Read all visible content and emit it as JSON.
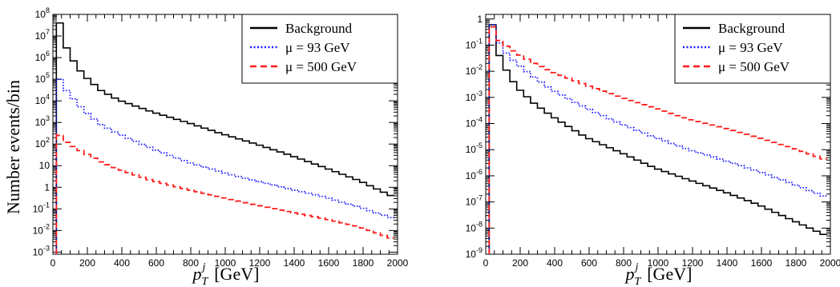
{
  "figure": {
    "ylabel": "Number events/bin",
    "xlabel_main": "p",
    "xlabel_sup": "j",
    "xlabel_sub": "T",
    "xlabel_unit": "[GeV]"
  },
  "colors": {
    "background": "#000000",
    "mu93": "#1a1aff",
    "mu500": "#ff1a1a"
  },
  "chart_data": [
    {
      "type": "line",
      "step": true,
      "log_y": true,
      "xlim": [
        0,
        2000
      ],
      "ylim": [
        0.0008,
        100000000
      ],
      "x_ticks": [
        0,
        200,
        400,
        600,
        800,
        1000,
        1200,
        1400,
        1600,
        1800,
        2000
      ],
      "x_tick_labels": [
        "0",
        "200",
        "400",
        "600",
        "800",
        "1000",
        "1200",
        "1400",
        "1600",
        "1800",
        "2000"
      ],
      "y_ticks": [
        0.001,
        0.01,
        0.1,
        1,
        10,
        100,
        1000,
        10000,
        100000,
        1000000,
        10000000,
        100000000
      ],
      "y_tick_labels": [
        {
          "base": "10",
          "exp": "-3"
        },
        {
          "base": "10",
          "exp": "-2"
        },
        {
          "base": "10",
          "exp": "-1"
        },
        {
          "base": "1",
          "exp": ""
        },
        {
          "base": "10",
          "exp": ""
        },
        {
          "base": "10",
          "exp": "2"
        },
        {
          "base": "10",
          "exp": "3"
        },
        {
          "base": "10",
          "exp": "4"
        },
        {
          "base": "10",
          "exp": "5"
        },
        {
          "base": "10",
          "exp": "6"
        },
        {
          "base": "10",
          "exp": "7"
        },
        {
          "base": "10",
          "exp": "8"
        }
      ],
      "legend_position": "top-right",
      "series": [
        {
          "name": "Background",
          "color_key": "background",
          "dash": "solid",
          "knots": [
            [
              40,
              40000000
            ],
            [
              60,
              40000000
            ],
            [
              80,
              13000000
            ],
            [
              100,
              2800000
            ],
            [
              150,
              500000
            ],
            [
              200,
              150000
            ],
            [
              300,
              30000
            ],
            [
              400,
              11000
            ],
            [
              600,
              3000
            ],
            [
              800,
              1000
            ],
            [
              1000,
              300
            ],
            [
              1200,
              100
            ],
            [
              1400,
              30
            ],
            [
              1600,
              8
            ],
            [
              1800,
              2
            ],
            [
              2000,
              0.35
            ]
          ]
        },
        {
          "name": "μ = 93 GeV",
          "color_key": "mu93",
          "dash": "dotted",
          "knots": [
            [
              40,
              100000
            ],
            [
              60,
              100000
            ],
            [
              100,
              30000
            ],
            [
              150,
              10000
            ],
            [
              200,
              3500
            ],
            [
              300,
              800
            ],
            [
              400,
              300
            ],
            [
              600,
              60
            ],
            [
              800,
              15
            ],
            [
              1000,
              5
            ],
            [
              1200,
              2
            ],
            [
              1400,
              0.8
            ],
            [
              1600,
              0.35
            ],
            [
              1800,
              0.12
            ],
            [
              2000,
              0.035
            ]
          ]
        },
        {
          "name": "μ = 500 GeV",
          "color_key": "mu500",
          "dash": "dashed",
          "knots": [
            [
              40,
              350
            ],
            [
              60,
              250
            ],
            [
              100,
              120
            ],
            [
              200,
              40
            ],
            [
              300,
              15
            ],
            [
              400,
              7
            ],
            [
              600,
              2
            ],
            [
              800,
              0.8
            ],
            [
              1000,
              0.35
            ],
            [
              1200,
              0.15
            ],
            [
              1400,
              0.07
            ],
            [
              1600,
              0.035
            ],
            [
              1800,
              0.015
            ],
            [
              2000,
              0.004
            ]
          ]
        }
      ]
    },
    {
      "type": "line",
      "step": true,
      "log_y": true,
      "xlim": [
        0,
        2000
      ],
      "ylim": [
        1e-09,
        1.5
      ],
      "x_ticks": [
        0,
        200,
        400,
        600,
        800,
        1000,
        1200,
        1400,
        1600,
        1800,
        2000
      ],
      "x_tick_labels": [
        "0",
        "200",
        "400",
        "600",
        "800",
        "1000",
        "1200",
        "1400",
        "1600",
        "1800",
        "2000"
      ],
      "y_ticks": [
        1e-09,
        1e-08,
        1e-07,
        1e-06,
        1e-05,
        0.0001,
        0.001,
        0.01,
        0.1,
        1
      ],
      "y_tick_labels": [
        {
          "base": "10",
          "exp": "-9"
        },
        {
          "base": "10",
          "exp": "-8"
        },
        {
          "base": "10",
          "exp": "-7"
        },
        {
          "base": "10",
          "exp": "-6"
        },
        {
          "base": "10",
          "exp": "-5"
        },
        {
          "base": "10",
          "exp": "-4"
        },
        {
          "base": "10",
          "exp": "-3"
        },
        {
          "base": "10",
          "exp": "-2"
        },
        {
          "base": "10",
          "exp": "-1"
        },
        {
          "base": "1",
          "exp": ""
        }
      ],
      "legend_position": "top-right",
      "series": [
        {
          "name": "Background",
          "color_key": "background",
          "dash": "solid",
          "knots": [
            [
              40,
              0.6
            ],
            [
              60,
              0.6
            ],
            [
              80,
              0.2
            ],
            [
              100,
              0.04
            ],
            [
              150,
              0.008
            ],
            [
              200,
              0.0025
            ],
            [
              300,
              0.0006
            ],
            [
              400,
              0.0002
            ],
            [
              600,
              3e-05
            ],
            [
              800,
              8e-06
            ],
            [
              1000,
              2e-06
            ],
            [
              1200,
              7e-07
            ],
            [
              1400,
              2.5e-07
            ],
            [
              1600,
              8e-08
            ],
            [
              1800,
              2e-08
            ],
            [
              2000,
              5e-09
            ]
          ]
        },
        {
          "name": "μ = 93 GeV",
          "color_key": "mu93",
          "dash": "dotted",
          "knots": [
            [
              40,
              0.6
            ],
            [
              60,
              0.6
            ],
            [
              80,
              0.3
            ],
            [
              100,
              0.12
            ],
            [
              150,
              0.04
            ],
            [
              200,
              0.02
            ],
            [
              300,
              0.006
            ],
            [
              400,
              0.002
            ],
            [
              600,
              0.0004
            ],
            [
              800,
              0.0001
            ],
            [
              1000,
              3e-05
            ],
            [
              1200,
              1e-05
            ],
            [
              1400,
              4e-06
            ],
            [
              1600,
              1.5e-06
            ],
            [
              1800,
              5e-07
            ],
            [
              2000,
              1.5e-07
            ]
          ]
        },
        {
          "name": "μ = 500 GeV",
          "color_key": "mu500",
          "dash": "dashed",
          "knots": [
            [
              40,
              0.5
            ],
            [
              60,
              0.5
            ],
            [
              80,
              0.25
            ],
            [
              100,
              0.15
            ],
            [
              150,
              0.08
            ],
            [
              200,
              0.05
            ],
            [
              300,
              0.02
            ],
            [
              400,
              0.01
            ],
            [
              600,
              0.003
            ],
            [
              800,
              0.001
            ],
            [
              1000,
              0.0004
            ],
            [
              1200,
              0.00015
            ],
            [
              1400,
              7e-05
            ],
            [
              1600,
              3e-05
            ],
            [
              1800,
              1.2e-05
            ],
            [
              2000,
              4e-06
            ]
          ]
        }
      ]
    }
  ]
}
